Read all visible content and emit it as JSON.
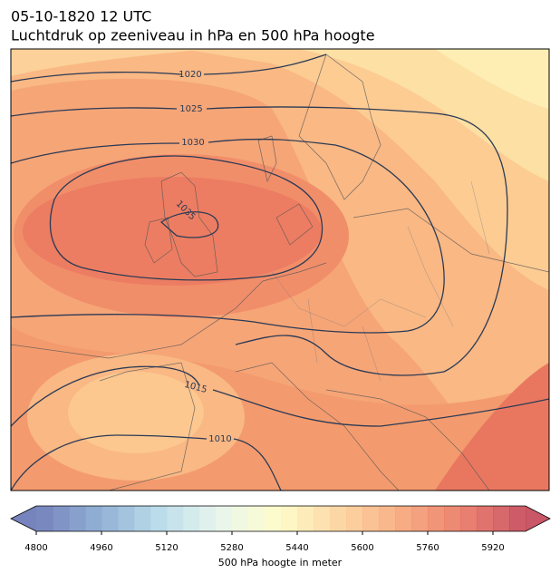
{
  "title": {
    "line1": "05-10-1820 12 UTC",
    "line2": "Luchtdruk op zeeniveau in hPa en 500 hPa hoogte"
  },
  "map": {
    "isobar_labels": [
      "1020",
      "1025",
      "1030",
      "1035",
      "1015",
      "1010"
    ]
  },
  "colorbar": {
    "lim": [
      4800,
      6000
    ],
    "ticks": [
      4800,
      4960,
      5120,
      5280,
      5440,
      5600,
      5760,
      5920
    ],
    "label": "500 hPa hoogte in meter"
  }
}
